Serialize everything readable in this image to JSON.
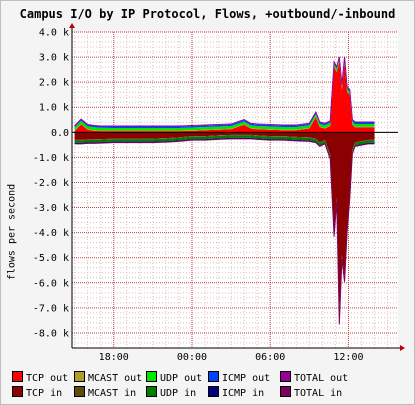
{
  "chart_data": {
    "type": "area",
    "title": "Campus I/O by IP Protocol, Flows, +outbound/-inbound",
    "ylabel": "flows per second",
    "xlabel": "",
    "ylim": [
      -8600,
      4000
    ],
    "y_ticks": [
      "4.0 k",
      "3.0 k",
      "2.0 k",
      "1.0 k",
      "0.0",
      "-1.0 k",
      "-2.0 k",
      "-3.0 k",
      "-4.0 k",
      "-5.0 k",
      "-6.0 k",
      "-7.0 k",
      "-8.0 k"
    ],
    "y_tick_values": [
      4000,
      3000,
      2000,
      1000,
      0,
      -1000,
      -2000,
      -3000,
      -4000,
      -5000,
      -6000,
      -7000,
      -8000
    ],
    "x_ticks": [
      "18:00",
      "00:00",
      "06:00",
      "12:00"
    ],
    "x_tick_values_hours": [
      18,
      24,
      30,
      36
    ],
    "x_range_hours": [
      14.8,
      39.8
    ],
    "grid": true,
    "legend_position": "bottom",
    "legend": [
      {
        "label": "TCP out",
        "color": "#ff0000"
      },
      {
        "label": "MCAST out",
        "color": "#b39b2e"
      },
      {
        "label": "UDP out",
        "color": "#00e600"
      },
      {
        "label": "ICMP out",
        "color": "#0044ff"
      },
      {
        "label": "TOTAL out",
        "color": "#990099"
      },
      {
        "label": "TCP in",
        "color": "#8b0000"
      },
      {
        "label": "MCAST in",
        "color": "#5c4d0a"
      },
      {
        "label": "UDP in",
        "color": "#007d00"
      },
      {
        "label": "ICMP in",
        "color": "#000080"
      },
      {
        "label": "TOTAL in",
        "color": "#800060"
      }
    ],
    "x_hours": [
      15.0,
      15.5,
      16.0,
      16.5,
      17.0,
      18.0,
      19.0,
      20.0,
      21.0,
      22.0,
      23.0,
      24.0,
      25.0,
      26.0,
      27.0,
      28.0,
      28.5,
      29.0,
      30.0,
      31.0,
      32.0,
      33.0,
      33.5,
      33.8,
      34.2,
      34.6,
      34.9,
      35.1,
      35.3,
      35.5,
      35.7,
      35.9,
      36.1,
      36.3,
      36.5,
      37.0,
      37.5,
      38.0
    ],
    "series": [
      {
        "name": "TCP out",
        "values": [
          50,
          320,
          100,
          60,
          50,
          50,
          50,
          50,
          50,
          50,
          50,
          60,
          80,
          100,
          120,
          300,
          150,
          120,
          100,
          80,
          80,
          150,
          600,
          200,
          150,
          250,
          2600,
          2400,
          2800,
          1700,
          2800,
          1600,
          1500,
          300,
          200,
          200,
          200,
          200
        ]
      },
      {
        "name": "MCAST out",
        "values": [
          20,
          20,
          20,
          20,
          20,
          20,
          20,
          20,
          20,
          20,
          20,
          20,
          20,
          20,
          20,
          20,
          20,
          20,
          20,
          20,
          20,
          20,
          20,
          20,
          20,
          20,
          20,
          20,
          20,
          20,
          20,
          20,
          20,
          20,
          20,
          20,
          20,
          20
        ]
      },
      {
        "name": "UDP out",
        "values": [
          120,
          120,
          120,
          120,
          110,
          100,
          100,
          100,
          100,
          100,
          100,
          110,
          110,
          110,
          110,
          110,
          110,
          110,
          110,
          110,
          110,
          110,
          110,
          110,
          110,
          110,
          110,
          110,
          110,
          110,
          110,
          110,
          110,
          110,
          110,
          110,
          110,
          110
        ]
      },
      {
        "name": "ICMP out",
        "values": [
          70,
          70,
          70,
          70,
          70,
          60,
          60,
          60,
          60,
          60,
          60,
          60,
          60,
          60,
          60,
          60,
          60,
          60,
          60,
          60,
          60,
          60,
          60,
          60,
          60,
          60,
          60,
          60,
          60,
          60,
          60,
          60,
          60,
          60,
          60,
          60,
          60,
          60
        ]
      },
      {
        "name": "TOTAL out",
        "values": [
          260,
          530,
          310,
          270,
          250,
          250,
          250,
          250,
          250,
          250,
          250,
          270,
          290,
          310,
          330,
          510,
          360,
          330,
          310,
          290,
          290,
          360,
          810,
          410,
          360,
          460,
          2810,
          2610,
          3010,
          1910,
          3010,
          1810,
          1710,
          510,
          410,
          410,
          410,
          410
        ]
      },
      {
        "name": "TCP in",
        "values": [
          -300,
          -300,
          -280,
          -280,
          -270,
          -250,
          -250,
          -250,
          -250,
          -230,
          -200,
          -150,
          -150,
          -120,
          -100,
          -100,
          -100,
          -120,
          -150,
          -150,
          -180,
          -200,
          -250,
          -400,
          -300,
          -900,
          -4000,
          -2600,
          -7300,
          -4900,
          -5800,
          -3800,
          -2500,
          -700,
          -400,
          -350,
          -300,
          -300
        ]
      },
      {
        "name": "MCAST in",
        "values": [
          -20,
          -20,
          -20,
          -20,
          -20,
          -20,
          -20,
          -20,
          -20,
          -20,
          -20,
          -20,
          -20,
          -20,
          -20,
          -20,
          -20,
          -20,
          -20,
          -20,
          -20,
          -20,
          -20,
          -20,
          -20,
          -20,
          -20,
          -20,
          -20,
          -20,
          -20,
          -20,
          -20,
          -20,
          -20,
          -20,
          -20,
          -20
        ]
      },
      {
        "name": "UDP in",
        "values": [
          -100,
          -100,
          -100,
          -100,
          -100,
          -100,
          -100,
          -100,
          -100,
          -100,
          -100,
          -100,
          -100,
          -100,
          -100,
          -100,
          -100,
          -100,
          -100,
          -100,
          -100,
          -100,
          -100,
          -100,
          -100,
          -100,
          -100,
          -100,
          -100,
          -100,
          -100,
          -100,
          -100,
          -100,
          -100,
          -100,
          -100,
          -100
        ]
      },
      {
        "name": "ICMP in",
        "values": [
          -40,
          -40,
          -40,
          -40,
          -40,
          -40,
          -40,
          -40,
          -40,
          -40,
          -40,
          -40,
          -40,
          -40,
          -40,
          -40,
          -40,
          -40,
          -40,
          -40,
          -40,
          -40,
          -40,
          -40,
          -40,
          -40,
          -40,
          -40,
          -40,
          -40,
          -40,
          -40,
          -40,
          -40,
          -40,
          -40,
          -40,
          -40
        ]
      },
      {
        "name": "TOTAL in",
        "values": [
          -460,
          -460,
          -440,
          -440,
          -430,
          -410,
          -410,
          -410,
          -410,
          -390,
          -360,
          -310,
          -310,
          -280,
          -260,
          -260,
          -260,
          -280,
          -310,
          -310,
          -340,
          -360,
          -410,
          -560,
          -460,
          -1060,
          -4160,
          -2760,
          -7660,
          -5060,
          -5960,
          -3960,
          -2660,
          -860,
          -560,
          -510,
          -460,
          -460
        ]
      }
    ]
  }
}
